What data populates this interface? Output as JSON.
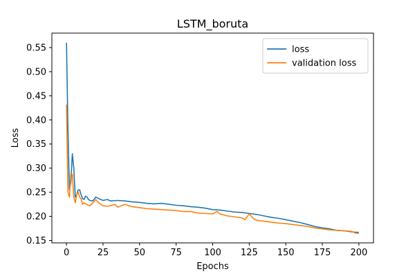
{
  "chart_data": {
    "type": "line",
    "title": "LSTM_boruta",
    "xlabel": "Epochs",
    "ylabel": "Loss",
    "xlim": [
      -10,
      210
    ],
    "ylim": [
      0.145,
      0.58
    ],
    "xticks": [
      0,
      25,
      50,
      75,
      100,
      125,
      150,
      175,
      200
    ],
    "yticks": [
      0.15,
      0.2,
      0.25,
      0.3,
      0.35,
      0.4,
      0.45,
      0.5,
      0.55
    ],
    "ytick_labels": [
      "0.15",
      "0.20",
      "0.25",
      "0.30",
      "0.35",
      "0.40",
      "0.45",
      "0.50",
      "0.55"
    ],
    "grid": false,
    "legend_position": "top-right",
    "series": [
      {
        "name": "loss",
        "color": "#1f77b4",
        "points": [
          [
            0,
            0.56
          ],
          [
            1,
            0.38
          ],
          [
            2,
            0.255
          ],
          [
            3,
            0.27
          ],
          [
            4,
            0.33
          ],
          [
            5,
            0.3
          ],
          [
            6,
            0.24
          ],
          [
            7,
            0.245
          ],
          [
            8,
            0.255
          ],
          [
            9,
            0.255
          ],
          [
            10,
            0.245
          ],
          [
            11,
            0.237
          ],
          [
            12,
            0.235
          ],
          [
            13,
            0.242
          ],
          [
            14,
            0.24
          ],
          [
            15,
            0.235
          ],
          [
            16,
            0.233
          ],
          [
            18,
            0.232
          ],
          [
            20,
            0.24
          ],
          [
            22,
            0.237
          ],
          [
            25,
            0.233
          ],
          [
            28,
            0.235
          ],
          [
            30,
            0.232
          ],
          [
            35,
            0.233
          ],
          [
            40,
            0.232
          ],
          [
            45,
            0.23
          ],
          [
            50,
            0.229
          ],
          [
            55,
            0.227
          ],
          [
            60,
            0.226
          ],
          [
            65,
            0.227
          ],
          [
            70,
            0.225
          ],
          [
            75,
            0.223
          ],
          [
            80,
            0.222
          ],
          [
            85,
            0.22
          ],
          [
            90,
            0.219
          ],
          [
            95,
            0.217
          ],
          [
            100,
            0.214
          ],
          [
            105,
            0.213
          ],
          [
            110,
            0.211
          ],
          [
            115,
            0.209
          ],
          [
            120,
            0.208
          ],
          [
            125,
            0.206
          ],
          [
            130,
            0.204
          ],
          [
            135,
            0.201
          ],
          [
            140,
            0.198
          ],
          [
            145,
            0.196
          ],
          [
            150,
            0.193
          ],
          [
            155,
            0.19
          ],
          [
            160,
            0.187
          ],
          [
            165,
            0.183
          ],
          [
            170,
            0.179
          ],
          [
            175,
            0.176
          ],
          [
            180,
            0.174
          ],
          [
            185,
            0.171
          ],
          [
            190,
            0.17
          ],
          [
            195,
            0.168
          ],
          [
            198,
            0.167
          ],
          [
            200,
            0.167
          ]
        ]
      },
      {
        "name": "validation loss",
        "color": "#ff7f0e",
        "points": [
          [
            0,
            0.432
          ],
          [
            1,
            0.25
          ],
          [
            2,
            0.24
          ],
          [
            3,
            0.29
          ],
          [
            4,
            0.287
          ],
          [
            5,
            0.24
          ],
          [
            6,
            0.228
          ],
          [
            7,
            0.245
          ],
          [
            8,
            0.25
          ],
          [
            9,
            0.24
          ],
          [
            10,
            0.236
          ],
          [
            11,
            0.225
          ],
          [
            12,
            0.228
          ],
          [
            14,
            0.224
          ],
          [
            16,
            0.222
          ],
          [
            18,
            0.228
          ],
          [
            20,
            0.235
          ],
          [
            22,
            0.228
          ],
          [
            25,
            0.222
          ],
          [
            28,
            0.221
          ],
          [
            30,
            0.222
          ],
          [
            33,
            0.225
          ],
          [
            35,
            0.219
          ],
          [
            40,
            0.225
          ],
          [
            45,
            0.22
          ],
          [
            50,
            0.218
          ],
          [
            55,
            0.216
          ],
          [
            60,
            0.215
          ],
          [
            65,
            0.214
          ],
          [
            70,
            0.213
          ],
          [
            75,
            0.212
          ],
          [
            80,
            0.21
          ],
          [
            85,
            0.21
          ],
          [
            90,
            0.207
          ],
          [
            95,
            0.206
          ],
          [
            100,
            0.205
          ],
          [
            103,
            0.21
          ],
          [
            105,
            0.205
          ],
          [
            110,
            0.201
          ],
          [
            115,
            0.199
          ],
          [
            120,
            0.197
          ],
          [
            122,
            0.193
          ],
          [
            125,
            0.205
          ],
          [
            128,
            0.195
          ],
          [
            130,
            0.192
          ],
          [
            135,
            0.19
          ],
          [
            140,
            0.188
          ],
          [
            145,
            0.186
          ],
          [
            150,
            0.185
          ],
          [
            155,
            0.183
          ],
          [
            160,
            0.181
          ],
          [
            165,
            0.179
          ],
          [
            170,
            0.176
          ],
          [
            175,
            0.174
          ],
          [
            180,
            0.172
          ],
          [
            185,
            0.171
          ],
          [
            190,
            0.17
          ],
          [
            195,
            0.169
          ],
          [
            198,
            0.165
          ],
          [
            200,
            0.165
          ]
        ]
      }
    ]
  }
}
